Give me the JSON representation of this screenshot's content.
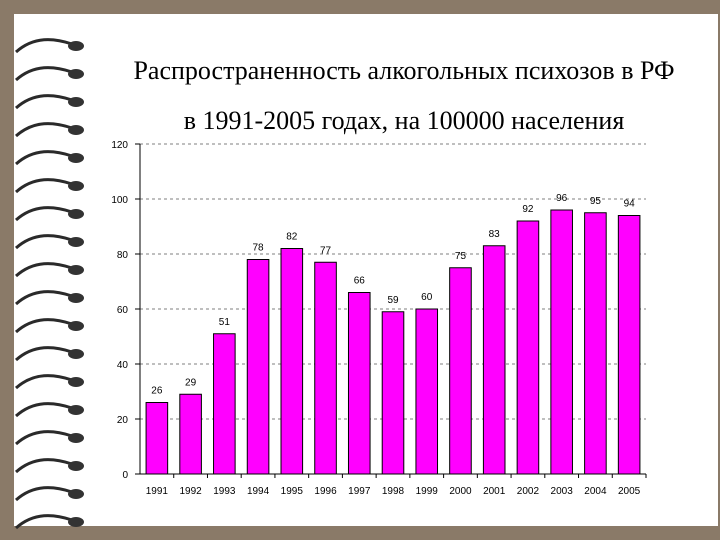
{
  "slide": {
    "title_line1": "Распространенность алкогольных психозов в РФ",
    "title_line2": "в 1991-2005 годах, на 100000 населения"
  },
  "colors": {
    "background_frame": "#8a7a68",
    "bar_fill": "#ff00ff",
    "bar_stroke": "#000000",
    "grid": "#000000"
  },
  "chart_data": {
    "type": "bar",
    "categories": [
      "1991",
      "1992",
      "1993",
      "1994",
      "1995",
      "1996",
      "1997",
      "1998",
      "1999",
      "2000",
      "2001",
      "2002",
      "2003",
      "2004",
      "2005"
    ],
    "values": [
      26,
      29,
      51,
      78,
      82,
      77,
      66,
      59,
      60,
      75,
      83,
      92,
      96,
      95,
      94
    ],
    "ylim": [
      0,
      120
    ],
    "yticks": [
      0,
      20,
      40,
      60,
      80,
      100,
      120
    ],
    "grid": "horizontal dashed",
    "legend": "none"
  }
}
